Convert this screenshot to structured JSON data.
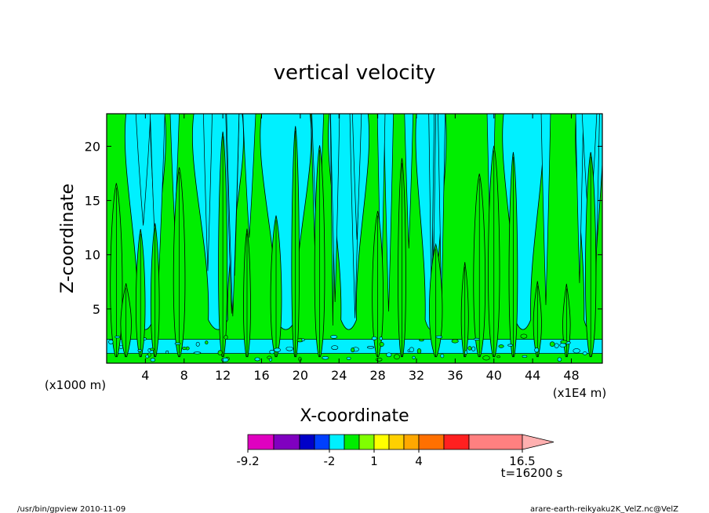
{
  "chart_data": {
    "type": "heatmap",
    "title": "vertical velocity",
    "xlabel": "X-coordinate",
    "ylabel": "Z-coordinate",
    "x_unit_left": "(x1000 m)",
    "x_unit_right": "(x1E4 m)",
    "xlim": [
      0,
      51.2
    ],
    "ylim": [
      0,
      23
    ],
    "x_ticks": [
      4,
      8,
      12,
      16,
      20,
      24,
      28,
      32,
      36,
      40,
      44,
      48
    ],
    "y_ticks": [
      5,
      10,
      15,
      20
    ],
    "colors": {
      "updraft_green": "#00ee00",
      "downdraft_cyan": "#00f0ff",
      "contour": "#000000"
    },
    "approx_plume_x": [
      1,
      2,
      3.5,
      5,
      7.5,
      12,
      14.5,
      17.5,
      19.5,
      22,
      28,
      30.5,
      34,
      37,
      38.5,
      40,
      42,
      44.5,
      47.5,
      50
    ],
    "colorbar": {
      "labels": [
        "-9.2",
        "-2",
        "1",
        "4",
        "16.5"
      ],
      "segments": [
        {
          "from": -9.2,
          "to": -8,
          "color": "#e000c0"
        },
        {
          "from": -8,
          "to": -6,
          "color": "#8000c0"
        },
        {
          "from": -6,
          "to": -4,
          "color": "#0000c8"
        },
        {
          "from": -4,
          "to": -2,
          "color": "#0040ff"
        },
        {
          "from": -2,
          "to": -1,
          "color": "#00f0ff"
        },
        {
          "from": -1,
          "to": 0,
          "color": "#00ee00"
        },
        {
          "from": 0,
          "to": 1,
          "color": "#80ff00"
        },
        {
          "from": 1,
          "to": 2,
          "color": "#ffff00"
        },
        {
          "from": 2,
          "to": 3,
          "color": "#ffd000"
        },
        {
          "from": 3,
          "to": 4,
          "color": "#ffa800"
        },
        {
          "from": 4,
          "to": 6,
          "color": "#ff7000"
        },
        {
          "from": 6,
          "to": 8,
          "color": "#ff2020"
        },
        {
          "from": 8,
          "to": 14,
          "color": "#ff8080"
        },
        {
          "from": 14,
          "to": 16.5,
          "color": "#ffb0b0"
        }
      ]
    }
  },
  "time_label": "t=16200 s",
  "footer": {
    "left": "/usr/bin/gpview   2010-11-09",
    "right": "arare-earth-reikyaku2K_VelZ.nc@VelZ"
  }
}
